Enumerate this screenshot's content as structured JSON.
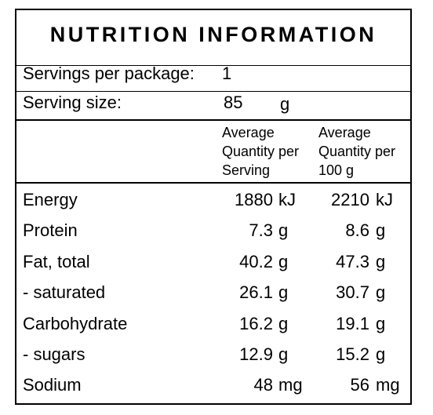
{
  "title": "NUTRITION INFORMATION",
  "servings_per_package": {
    "label": "Servings per package:",
    "value": "1"
  },
  "serving_size": {
    "label": "Serving size:",
    "value": "85",
    "unit": "g"
  },
  "columns": {
    "per_serving": "Average\nQuantity per\nServing",
    "per_100g": "Average\nQuantity per\n100 g"
  },
  "rows": [
    {
      "name": "Energy",
      "serving": "1880",
      "serving_unit": "kJ",
      "per100": "2210",
      "per100_unit": "kJ"
    },
    {
      "name": "Protein",
      "serving": "7.3",
      "serving_unit": "g",
      "per100": "8.6",
      "per100_unit": "g"
    },
    {
      "name": "Fat, total",
      "serving": "40.2",
      "serving_unit": "g",
      "per100": "47.3",
      "per100_unit": "g"
    },
    {
      "name": "- saturated",
      "serving": "26.1",
      "serving_unit": "g",
      "per100": "30.7",
      "per100_unit": "g"
    },
    {
      "name": "Carbohydrate",
      "serving": "16.2",
      "serving_unit": "g",
      "per100": "19.1",
      "per100_unit": "g"
    },
    {
      "name": "- sugars",
      "serving": "12.9",
      "serving_unit": "g",
      "per100": "15.2",
      "per100_unit": "g"
    },
    {
      "name": "Sodium",
      "serving": "48",
      "serving_unit": "mg",
      "per100": "56",
      "per100_unit": "mg"
    }
  ]
}
